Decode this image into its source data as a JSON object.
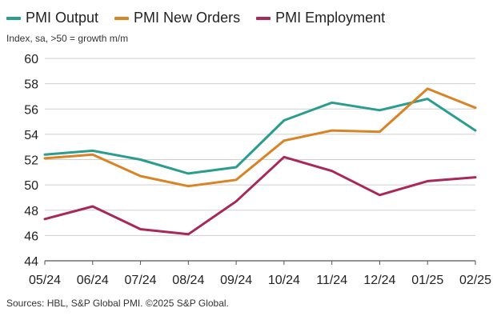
{
  "subtitle": "Index, sa, >50 = growth m/m",
  "source": "Sources: HBL, S&P Global PMI. ©2025 S&P Global.",
  "chart_data": {
    "type": "line",
    "title": "",
    "xlabel": "",
    "ylabel": "Index, sa, >50 = growth m/m",
    "categories": [
      "05/24",
      "06/24",
      "07/24",
      "08/24",
      "09/24",
      "10/24",
      "11/24",
      "12/24",
      "01/25",
      "02/25"
    ],
    "ylim": [
      44,
      60
    ],
    "yticks": [
      44,
      46,
      48,
      50,
      52,
      54,
      56,
      58,
      60
    ],
    "grid": true,
    "legend_position": "top-left",
    "series": [
      {
        "name": "PMI Output",
        "color": "#2a9d8f",
        "values": [
          52.4,
          52.7,
          52.0,
          50.9,
          51.4,
          55.1,
          56.5,
          55.9,
          56.8,
          54.3
        ]
      },
      {
        "name": "PMI New Orders",
        "color": "#d98324",
        "values": [
          52.1,
          52.4,
          50.7,
          49.9,
          50.4,
          53.5,
          54.3,
          54.2,
          57.6,
          56.1
        ]
      },
      {
        "name": "PMI Employment",
        "color": "#a8285a",
        "values": [
          47.3,
          48.3,
          46.5,
          46.1,
          48.7,
          52.2,
          51.1,
          49.2,
          50.3,
          50.6
        ]
      }
    ]
  }
}
